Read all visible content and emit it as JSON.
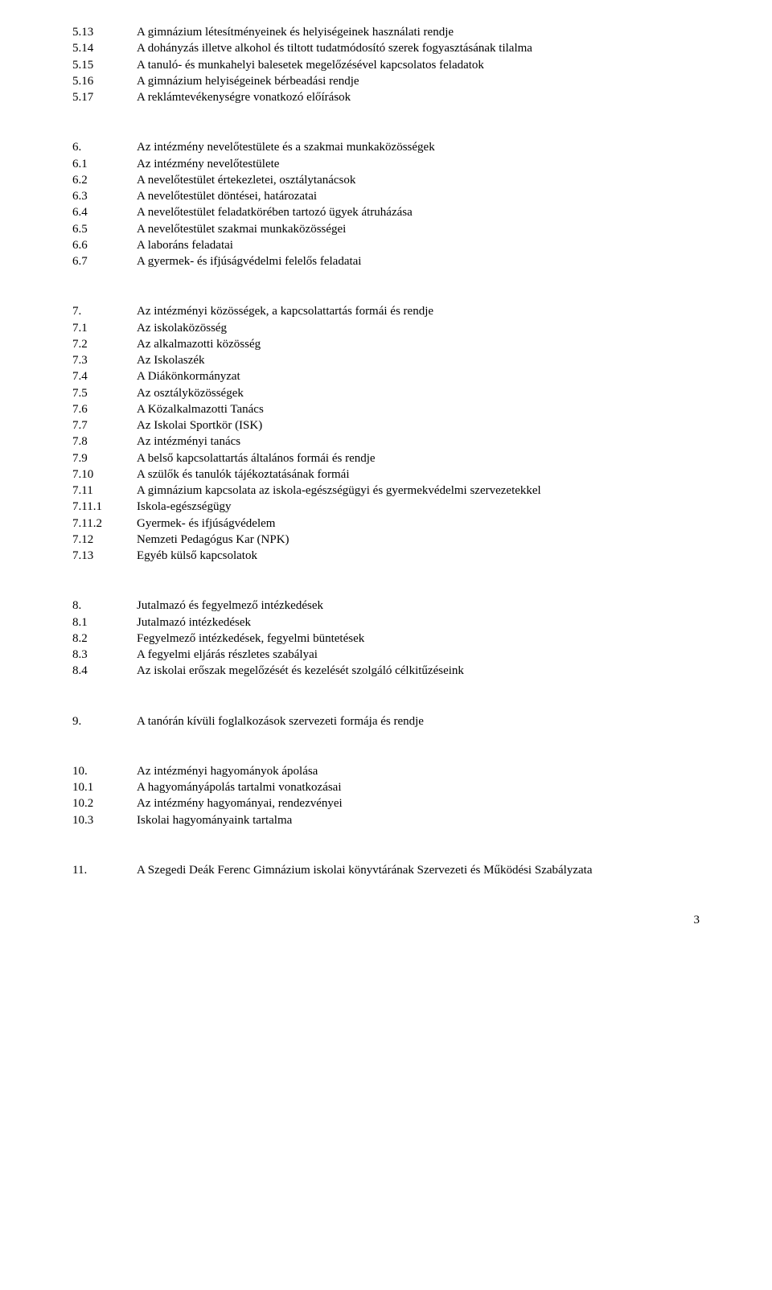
{
  "font_family": "Times New Roman",
  "font_size_pt": 12,
  "text_color": "#000000",
  "background_color": "#ffffff",
  "page_number": "3",
  "sections": [
    {
      "items": [
        {
          "num": "5.13",
          "text": "A gimnázium létesítményeinek és helyiségeinek használati rendje"
        },
        {
          "num": "5.14",
          "text": "A dohányzás illetve alkohol és tiltott tudatmódosító szerek fogyasztásának tilalma"
        },
        {
          "num": "5.15",
          "text": "A tanuló- és munkahelyi balesetek megelőzésével kapcsolatos feladatok"
        },
        {
          "num": "5.16",
          "text": "A gimnázium helyiségeinek bérbeadási rendje"
        },
        {
          "num": "5.17",
          "text": "A reklámtevékenységre vonatkozó előírások"
        }
      ]
    },
    {
      "items": [
        {
          "num": "6.",
          "text": "Az intézmény nevelőtestülete és a szakmai munkaközösségek"
        },
        {
          "num": "6.1",
          "text": "Az intézmény nevelőtestülete"
        },
        {
          "num": "6.2",
          "text": "A nevelőtestület értekezletei, osztálytanácsok"
        },
        {
          "num": "6.3",
          "text": "A nevelőtestület döntései, határozatai"
        },
        {
          "num": "6.4",
          "text": "A nevelőtestület feladatkörében tartozó ügyek átruházása"
        },
        {
          "num": "6.5",
          "text": "A nevelőtestület szakmai munkaközösségei"
        },
        {
          "num": "6.6",
          "text": "A laboráns feladatai"
        },
        {
          "num": "6.7",
          "text": "A gyermek- és ifjúságvédelmi felelős feladatai"
        }
      ]
    },
    {
      "items": [
        {
          "num": "7.",
          "text": "Az intézményi közösségek, a kapcsolattartás formái és rendje"
        },
        {
          "num": "7.1",
          "text": "Az iskolaközösség"
        },
        {
          "num": "7.2",
          "text": "Az alkalmazotti közösség"
        },
        {
          "num": "7.3",
          "text": "Az Iskolaszék"
        },
        {
          "num": "7.4",
          "text": "A Diákönkormányzat"
        },
        {
          "num": "7.5",
          "text": "Az osztályközösségek"
        },
        {
          "num": "7.6",
          "text": "A Közalkalmazotti Tanács"
        },
        {
          "num": "7.7",
          "text": "Az Iskolai Sportkör (ISK)"
        },
        {
          "num": "7.8",
          "text": "Az intézményi tanács"
        },
        {
          "num": "7.9",
          "text": "A belső kapcsolattartás általános formái és rendje"
        },
        {
          "num": "7.10",
          "text": "A szülők és tanulók tájékoztatásának formái"
        },
        {
          "num": "7.11",
          "text": "A gimnázium kapcsolata az iskola-egészségügyi és gyermekvédelmi szervezetekkel",
          "justified": true
        },
        {
          "num": "7.11.1",
          "text": "Iskola-egészségügy"
        },
        {
          "num": "7.11.2",
          "text": "Gyermek- és ifjúságvédelem"
        },
        {
          "num": "7.12",
          "text": "Nemzeti Pedagógus Kar (NPK)"
        },
        {
          "num": "7.13",
          "text": "Egyéb külső kapcsolatok"
        }
      ]
    },
    {
      "items": [
        {
          "num": "8.",
          "text": "Jutalmazó és fegyelmező intézkedések"
        },
        {
          "num": "8.1",
          "text": "Jutalmazó intézkedések"
        },
        {
          "num": "8.2",
          "text": "Fegyelmező intézkedések, fegyelmi büntetések"
        },
        {
          "num": "8.3",
          "text": "A fegyelmi eljárás részletes szabályai"
        },
        {
          "num": "8.4",
          "text": "Az iskolai erőszak megelőzését és kezelését szolgáló célkitűzéseink"
        }
      ]
    },
    {
      "items": [
        {
          "num": "9.",
          "text": "A tanórán kívüli foglalkozások szervezeti formája és rendje"
        }
      ]
    },
    {
      "items": [
        {
          "num": "10.",
          "text": "Az intézményi hagyományok ápolása"
        },
        {
          "num": "10.1",
          "text": "A hagyományápolás tartalmi vonatkozásai"
        },
        {
          "num": "10.2",
          "text": "Az intézmény hagyományai, rendezvényei"
        },
        {
          "num": "10.3",
          "text": "Iskolai hagyományaink tartalma"
        }
      ]
    },
    {
      "items": [
        {
          "num": "11.",
          "text": "A Szegedi Deák Ferenc Gimnázium iskolai könyvtárának Szervezeti és Működési Szabályzata"
        }
      ]
    }
  ]
}
